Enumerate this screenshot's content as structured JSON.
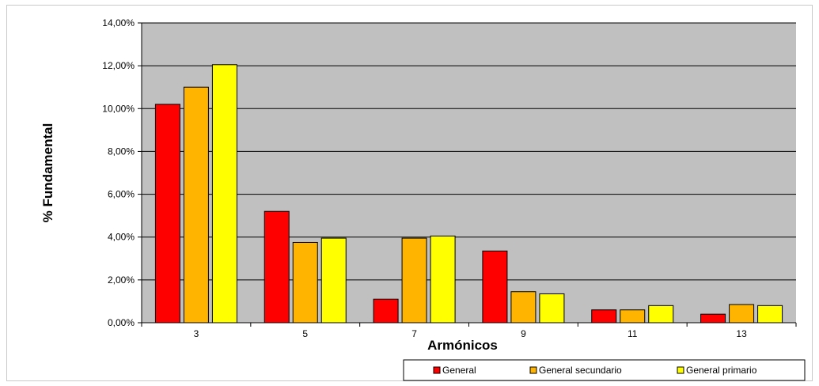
{
  "chart_data": {
    "type": "bar",
    "title": "",
    "xlabel": "Armónicos",
    "ylabel": "% Fundamental",
    "categories": [
      "3",
      "5",
      "7",
      "9",
      "11",
      "13"
    ],
    "ylim": [
      0,
      14
    ],
    "yticks": [
      "0,00%",
      "2,00%",
      "4,00%",
      "6,00%",
      "8,00%",
      "10,00%",
      "12,00%",
      "14,00%"
    ],
    "grid": true,
    "legend_position": "bottom-right",
    "series": [
      {
        "name": "General",
        "color": "#ff0000",
        "values": [
          10.2,
          5.2,
          1.1,
          3.35,
          0.6,
          0.4
        ]
      },
      {
        "name": "General secundario",
        "color": "#ffb400",
        "values": [
          11.0,
          3.75,
          3.95,
          1.45,
          0.6,
          0.85
        ]
      },
      {
        "name": "General primario",
        "color": "#ffff00",
        "values": [
          12.05,
          3.95,
          4.05,
          1.35,
          0.8,
          0.8
        ]
      }
    ]
  }
}
